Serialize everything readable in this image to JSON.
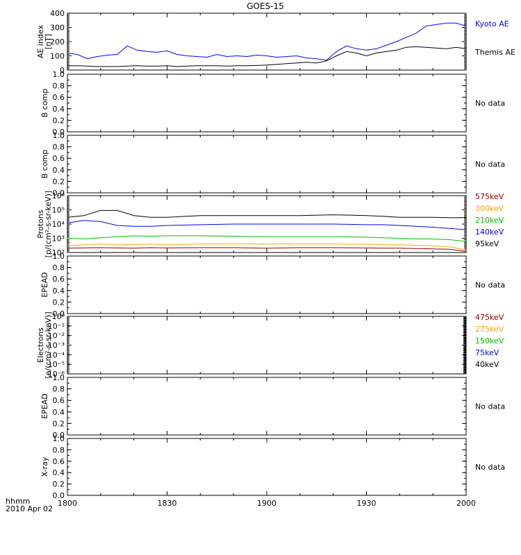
{
  "title": "GOES-15",
  "time_axis": {
    "ticks": [
      "1800",
      "1830",
      "1900",
      "1930",
      "2000"
    ],
    "unit_label": "hhmm",
    "date_label": "2010 Apr 02"
  },
  "panels": [
    {
      "id": "ae",
      "ylabel": [
        "AE index",
        "[nT]"
      ],
      "yticks": [
        "0",
        "100",
        "200",
        "300",
        "400"
      ],
      "legend": [
        {
          "text": "Kyoto AE",
          "color": "#0000ff"
        },
        {
          "text": "Themis AE",
          "color": "#000000"
        }
      ]
    },
    {
      "id": "bcomp1",
      "ylabel": [
        "B comp"
      ],
      "yticks": [
        "0.0",
        "0.2",
        "0.4",
        "0.6",
        "0.8",
        "1.0"
      ],
      "nodata": "No data"
    },
    {
      "id": "bcomp2",
      "ylabel": [
        "B comp"
      ],
      "yticks": [
        "0.0",
        "0.2",
        "0.4",
        "0.6",
        "0.8",
        "1.0"
      ],
      "nodata": "No data"
    },
    {
      "id": "protons",
      "ylabel": [
        "Protons",
        "[p/(cm²-s-sr-keV)]"
      ],
      "yticks": [
        "10²",
        "10³",
        "10⁴",
        "10⁵",
        "10⁶"
      ],
      "legend": [
        {
          "text": "575keV",
          "color": "#8b0000"
        },
        {
          "text": "300keV",
          "color": "#ffa500"
        },
        {
          "text": "210keV",
          "color": "#00c000"
        },
        {
          "text": "140keV",
          "color": "#0000ff"
        },
        {
          "text": "95keV",
          "color": "#000000"
        }
      ]
    },
    {
      "id": "epead1",
      "ylabel": [
        "EPEAD"
      ],
      "yticks": [
        "0.0",
        "0.2",
        "0.4",
        "0.6",
        "0.8",
        "1.0"
      ],
      "nodata": "No data"
    },
    {
      "id": "electrons",
      "ylabel": [
        "Electrons",
        "[e/(cm²-s-sr-keV)]"
      ],
      "yticks": [
        "10⁻⁶",
        "10⁻⁵",
        "10⁻⁴",
        "10⁻³",
        "10⁻²",
        "10⁻¹",
        "10⁰"
      ],
      "legend": [
        {
          "text": "475keV",
          "color": "#8b0000"
        },
        {
          "text": "275keV",
          "color": "#ffa500"
        },
        {
          "text": "150keV",
          "color": "#00c000"
        },
        {
          "text": "75keV",
          "color": "#0000ff"
        },
        {
          "text": "40keV",
          "color": "#000000"
        }
      ]
    },
    {
      "id": "epead2",
      "ylabel": [
        "EPEAD"
      ],
      "yticks": [
        "0.0",
        "0.2",
        "0.4",
        "0.6",
        "0.8",
        "1.0"
      ],
      "nodata": "No data"
    },
    {
      "id": "xray",
      "ylabel": [
        "X-ray"
      ],
      "yticks": [
        "0.0",
        "0.2",
        "0.4",
        "0.6",
        "0.8",
        "1.0"
      ],
      "nodata": "No data"
    }
  ],
  "chart_data": [
    {
      "type": "line",
      "panel": "ae",
      "xlim": [
        0,
        120
      ],
      "ylim": [
        0,
        400
      ],
      "series": [
        {
          "name": "Kyoto AE",
          "color": "#0000ff",
          "x": [
            0,
            3,
            6,
            9,
            12,
            15,
            18,
            21,
            24,
            27,
            30,
            33,
            36,
            39,
            42,
            45,
            48,
            51,
            54,
            57,
            60,
            63,
            66,
            69,
            72,
            75,
            78,
            81,
            84,
            87,
            90,
            93,
            96,
            99,
            102,
            105,
            108,
            111,
            114,
            117,
            120
          ],
          "y": [
            120,
            110,
            80,
            95,
            105,
            110,
            170,
            140,
            130,
            125,
            135,
            110,
            100,
            95,
            90,
            110,
            95,
            100,
            95,
            105,
            100,
            90,
            95,
            100,
            85,
            80,
            70,
            130,
            170,
            150,
            140,
            150,
            175,
            200,
            230,
            260,
            310,
            320,
            330,
            330,
            310
          ]
        },
        {
          "name": "Themis AE",
          "color": "#000000",
          "x": [
            0,
            3,
            6,
            9,
            12,
            15,
            18,
            21,
            24,
            27,
            30,
            33,
            36,
            39,
            42,
            45,
            48,
            51,
            54,
            57,
            60,
            63,
            66,
            69,
            72,
            75,
            78,
            81,
            84,
            87,
            90,
            93,
            96,
            99,
            102,
            105,
            108,
            111,
            114,
            117,
            120
          ],
          "y": [
            30,
            30,
            28,
            25,
            25,
            25,
            28,
            30,
            28,
            28,
            30,
            25,
            28,
            30,
            30,
            30,
            28,
            30,
            30,
            32,
            35,
            40,
            45,
            50,
            55,
            50,
            65,
            100,
            130,
            120,
            100,
            120,
            130,
            140,
            160,
            165,
            160,
            155,
            150,
            160,
            150
          ]
        }
      ]
    },
    {
      "type": "line",
      "panel": "protons",
      "xlim": [
        0,
        120
      ],
      "yscale": "log",
      "ylim": [
        100,
        1000000
      ],
      "series": [
        {
          "name": "95keV",
          "color": "#000000",
          "x": [
            0,
            5,
            10,
            15,
            20,
            25,
            30,
            40,
            50,
            60,
            70,
            80,
            90,
            95,
            100,
            105,
            110,
            115,
            120
          ],
          "y": [
            30000,
            40000,
            90000,
            90000,
            40000,
            30000,
            30000,
            40000,
            40000,
            40000,
            40000,
            45000,
            40000,
            35000,
            30000,
            30000,
            30000,
            28000,
            28000
          ]
        },
        {
          "name": "140keV",
          "color": "#0000ff",
          "x": [
            0,
            5,
            10,
            15,
            20,
            25,
            30,
            40,
            50,
            60,
            70,
            80,
            90,
            95,
            100,
            105,
            110,
            115,
            120
          ],
          "y": [
            12000,
            18000,
            15000,
            8000,
            7000,
            7000,
            8000,
            9000,
            10000,
            10000,
            10000,
            10000,
            9000,
            9000,
            8000,
            7000,
            6000,
            5000,
            4000
          ]
        },
        {
          "name": "210keV",
          "color": "#00c000",
          "x": [
            0,
            5,
            10,
            15,
            20,
            25,
            30,
            40,
            50,
            60,
            70,
            80,
            90,
            95,
            100,
            105,
            110,
            115,
            120
          ],
          "y": [
            1000,
            900,
            1100,
            1300,
            1500,
            1400,
            1500,
            1500,
            1400,
            1300,
            1300,
            1300,
            1200,
            1100,
            1000,
            900,
            900,
            800,
            600
          ]
        },
        {
          "name": "300keV",
          "color": "#ffa500",
          "x": [
            0,
            5,
            10,
            15,
            20,
            25,
            30,
            40,
            50,
            60,
            70,
            80,
            90,
            95,
            100,
            105,
            110,
            115,
            120
          ],
          "y": [
            300,
            350,
            400,
            350,
            350,
            400,
            350,
            400,
            400,
            400,
            400,
            400,
            380,
            350,
            350,
            320,
            300,
            250,
            150
          ]
        },
        {
          "name": "575keV",
          "color": "#8b0000",
          "x": [
            0,
            5,
            10,
            15,
            20,
            25,
            30,
            40,
            50,
            60,
            70,
            80,
            90,
            95,
            100,
            105,
            110,
            115,
            120
          ],
          "y": [
            200,
            210,
            220,
            210,
            200,
            220,
            210,
            220,
            220,
            200,
            220,
            220,
            210,
            200,
            200,
            190,
            180,
            170,
            120
          ]
        }
      ]
    }
  ]
}
